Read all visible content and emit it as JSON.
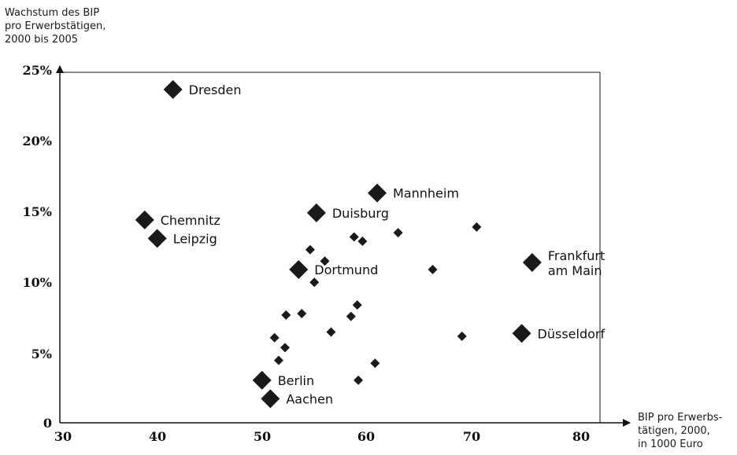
{
  "chart_data": {
    "type": "scatter",
    "ylabel_lines": [
      "Wachstum des BIP",
      "pro Erwerbstätigen,",
      "2000 bis 2005"
    ],
    "xlabel_lines": [
      "BIP pro Erwerbs-",
      "tätigen, 2000,",
      "in 1000 Euro"
    ],
    "xlim": [
      30,
      82
    ],
    "ylim": [
      0,
      25
    ],
    "x_ticks": [
      "30",
      "40",
      "50",
      "60",
      "70",
      "80"
    ],
    "y_ticks": [
      "0",
      "5%",
      "10%",
      "15%",
      "20%",
      "25%"
    ],
    "labeled_points": [
      {
        "name": "Dresden",
        "x": 40.5,
        "y": 23.5
      },
      {
        "name": "Chemnitz",
        "x": 37.8,
        "y": 14.3
      },
      {
        "name": "Leipzig",
        "x": 39.0,
        "y": 13.0
      },
      {
        "name": "Mannheim",
        "x": 60.0,
        "y": 16.2
      },
      {
        "name": "Duisburg",
        "x": 54.2,
        "y": 14.8
      },
      {
        "name": "Dortmund",
        "x": 52.5,
        "y": 10.8
      },
      {
        "name": "Frankfurt am Main",
        "x": 74.8,
        "y": 11.3
      },
      {
        "name": "Düsseldorf",
        "x": 73.8,
        "y": 6.3
      },
      {
        "name": "Berlin",
        "x": 49.0,
        "y": 3.0
      },
      {
        "name": "Aachen",
        "x": 49.8,
        "y": 1.7
      }
    ],
    "other_points": [
      {
        "x": 53.6,
        "y": 12.2
      },
      {
        "x": 57.8,
        "y": 13.1
      },
      {
        "x": 58.6,
        "y": 12.8
      },
      {
        "x": 62.0,
        "y": 13.4
      },
      {
        "x": 69.5,
        "y": 13.8
      },
      {
        "x": 55.0,
        "y": 11.4
      },
      {
        "x": 54.0,
        "y": 9.9
      },
      {
        "x": 65.3,
        "y": 10.8
      },
      {
        "x": 51.3,
        "y": 7.6
      },
      {
        "x": 52.8,
        "y": 7.7
      },
      {
        "x": 58.1,
        "y": 8.3
      },
      {
        "x": 57.5,
        "y": 7.5
      },
      {
        "x": 55.6,
        "y": 6.4
      },
      {
        "x": 68.1,
        "y": 6.1
      },
      {
        "x": 50.2,
        "y": 6.0
      },
      {
        "x": 51.2,
        "y": 5.3
      },
      {
        "x": 50.6,
        "y": 4.4
      },
      {
        "x": 59.8,
        "y": 4.2
      },
      {
        "x": 58.2,
        "y": 3.0
      }
    ]
  }
}
